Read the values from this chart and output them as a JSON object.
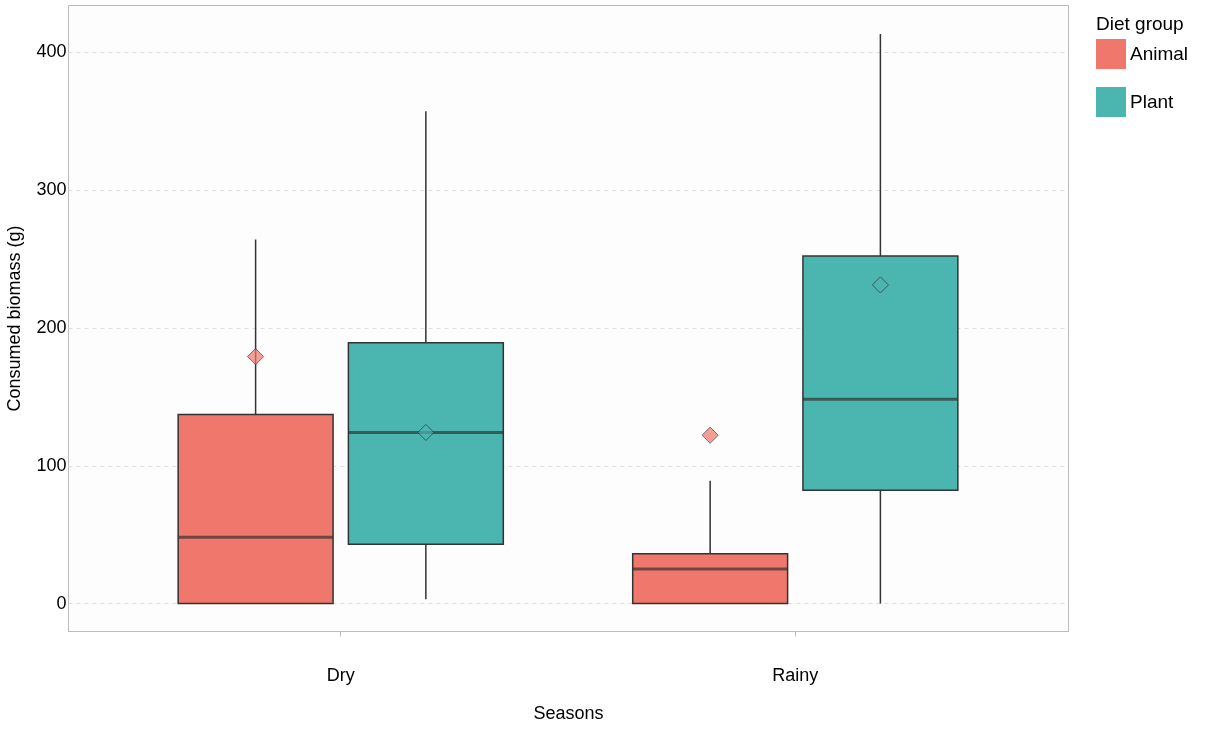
{
  "chart_data": {
    "type": "box",
    "xlabel": "Seasons",
    "ylabel": "Consumed biomass (g)",
    "legend_title": "Diet group",
    "legend": "right",
    "grid": "y",
    "categories": [
      "Dry",
      "Rainy"
    ],
    "ylim": [
      -20,
      434
    ],
    "yticks": [
      0,
      100,
      200,
      300,
      400
    ],
    "series": [
      {
        "name": "Animal",
        "color": "#f0776c",
        "boxes": [
          {
            "low": 0,
            "q1": 0,
            "median": 48,
            "q3": 137,
            "high": 264,
            "mean": 179
          },
          {
            "low": 0,
            "q1": 0,
            "median": 25,
            "q3": 36,
            "high": 89,
            "mean": 122
          }
        ]
      },
      {
        "name": "Plant",
        "color": "#4bb5b0",
        "boxes": [
          {
            "low": 3,
            "q1": 43,
            "median": 124,
            "q3": 189,
            "high": 357,
            "mean": 124
          },
          {
            "low": 0,
            "q1": 82,
            "median": 148,
            "q3": 252,
            "high": 413,
            "mean": 231
          }
        ]
      }
    ]
  }
}
